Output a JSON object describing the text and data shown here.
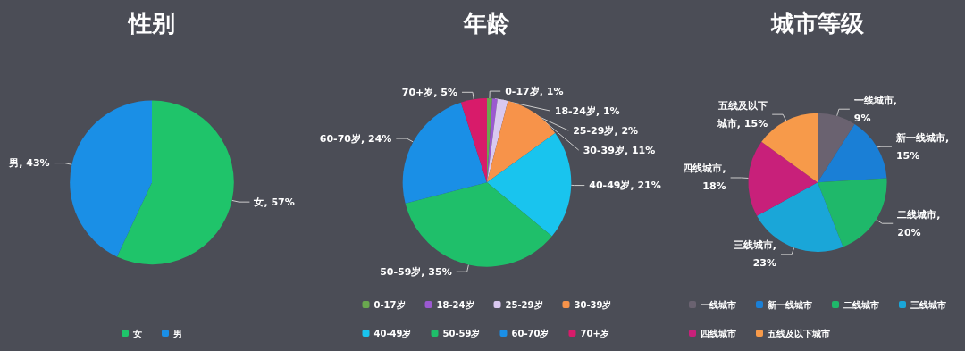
{
  "chart_data": [
    {
      "type": "pie",
      "title": "性别",
      "categories": [
        "女",
        "男"
      ],
      "values": [
        57,
        43
      ],
      "value_labels": [
        "女, 57%",
        "男, 43%"
      ],
      "colors": [
        "#1fc46a",
        "#1a8fe6"
      ],
      "legend": "bottom"
    },
    {
      "type": "pie",
      "title": "年龄",
      "categories": [
        "0-17岁",
        "18-24岁",
        "25-29岁",
        "30-39岁",
        "40-49岁",
        "50-59岁",
        "60-70岁",
        "70+岁"
      ],
      "values": [
        1,
        1,
        2,
        11,
        21,
        35,
        24,
        5
      ],
      "value_labels": [
        "0-17岁, 1%",
        "18-24岁, 1%",
        "25-29岁, 2%",
        "30-39岁, 11%",
        "40-49岁, 21%",
        "50-59岁, 35%",
        "60-70岁, 24%",
        "70+岁, 5%"
      ],
      "colors": [
        "#6aa84f",
        "#9b59d0",
        "#d9c8f0",
        "#f7934a",
        "#19c4ee",
        "#1fbf6a",
        "#1a8fe6",
        "#d81b6a"
      ],
      "legend": "bottom"
    },
    {
      "type": "pie",
      "title": "城市等级",
      "categories": [
        "一线城市",
        "新一线城市",
        "二线城市",
        "三线城市",
        "四线城市",
        "五线及以下城市"
      ],
      "values": [
        9,
        15,
        20,
        23,
        18,
        15
      ],
      "value_labels": [
        "一线城市,\n9%",
        "新一线城市,\n15%",
        "二线城市,\n20%",
        "三线城市,\n23%",
        "四线城市,\n18%",
        "五线及以下城市, 15%"
      ],
      "colors": [
        "#6a6270",
        "#1a7fd6",
        "#1fb86a",
        "#1aa6d8",
        "#c8207a",
        "#f79a4a"
      ],
      "legend": "bottom"
    }
  ]
}
